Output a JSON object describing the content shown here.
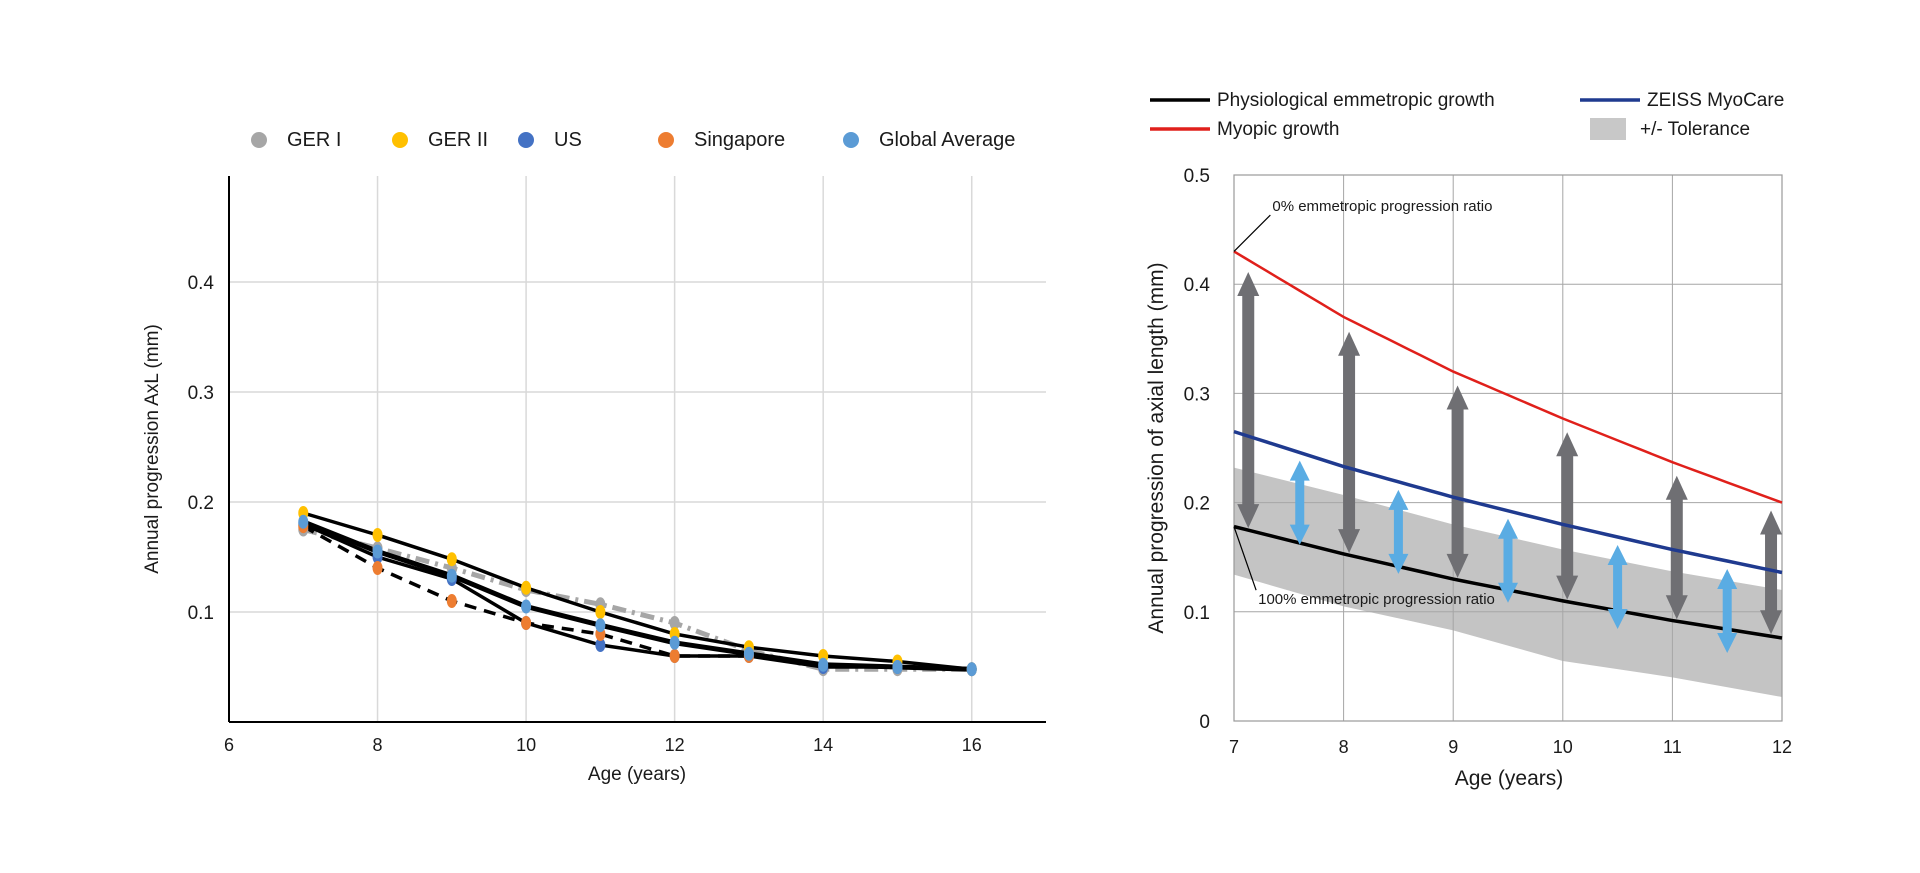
{
  "chart_data": [
    {
      "type": "line",
      "xlabel": "Age (years)",
      "ylabel": "Annual progression AxL (mm)",
      "xlim": [
        6,
        17
      ],
      "ylim": [
        0,
        0.5
      ],
      "x_ticks": [
        "6",
        "8",
        "10",
        "12",
        "14",
        "16"
      ],
      "y_ticks": [
        "0.1",
        "0.2",
        "0.3",
        "0.4"
      ],
      "grid": "vertical and horizontal",
      "legend_position": "top",
      "series": [
        {
          "name": "GER I",
          "color": "#a6a6a6",
          "style": "dash-dot",
          "x": [
            7,
            8,
            9,
            10,
            11,
            12,
            13,
            14,
            15,
            16
          ],
          "y": [
            0.175,
            0.158,
            0.14,
            0.12,
            0.107,
            0.09,
            0.065,
            0.048,
            0.048,
            0.048
          ]
        },
        {
          "name": "GER II",
          "color": "#ffc000",
          "style": "solid",
          "x": [
            7,
            8,
            9,
            10,
            11,
            12,
            13,
            14,
            15,
            16
          ],
          "y": [
            0.19,
            0.17,
            0.148,
            0.122,
            0.1,
            0.08,
            0.068,
            0.06,
            0.055,
            0.048
          ]
        },
        {
          "name": "US",
          "color": "#4472c4",
          "style": "solid",
          "x": [
            7,
            8,
            9,
            10,
            11,
            12,
            13,
            14,
            15,
            16
          ],
          "y": [
            0.18,
            0.15,
            0.13,
            0.09,
            0.07,
            0.06,
            0.06,
            0.05,
            0.05,
            0.048
          ]
        },
        {
          "name": "Singapore",
          "color": "#ed7d31",
          "style": "dashed",
          "x": [
            7,
            8,
            9,
            10,
            11,
            12,
            13
          ],
          "y": [
            0.178,
            0.14,
            0.11,
            0.09,
            0.08,
            0.06,
            0.06
          ]
        },
        {
          "name": "Global Average",
          "color": "#5b9bd5",
          "style": "solid",
          "x": [
            7,
            8,
            9,
            10,
            11,
            12,
            13,
            14,
            15,
            16
          ],
          "y": [
            0.182,
            0.155,
            0.133,
            0.105,
            0.088,
            0.072,
            0.062,
            0.052,
            0.05,
            0.048
          ]
        }
      ]
    },
    {
      "type": "line",
      "xlabel": "Age (years)",
      "ylabel": "Annual progression of axial length (mm)",
      "xlim": [
        7,
        12
      ],
      "ylim": [
        0,
        0.5
      ],
      "x_ticks": [
        "7",
        "8",
        "9",
        "10",
        "11",
        "12"
      ],
      "y_ticks": [
        "0",
        "0.1",
        "0.2",
        "0.3",
        "0.4",
        "0.5"
      ],
      "grid": "vertical and horizontal",
      "legend_position": "top",
      "series": [
        {
          "name": "Physiological emmetropic growth",
          "color": "#000000",
          "x": [
            7,
            8,
            9,
            10,
            11,
            12
          ],
          "y": [
            0.178,
            0.153,
            0.13,
            0.11,
            0.092,
            0.076
          ]
        },
        {
          "name": "Myopic growth",
          "color": "#e0201b",
          "x": [
            7,
            8,
            9,
            10,
            11,
            12
          ],
          "y": [
            0.43,
            0.37,
            0.32,
            0.277,
            0.237,
            0.2
          ]
        },
        {
          "name": "ZEISS MyoCare",
          "color": "#1f3a8f",
          "x": [
            7,
            8,
            9,
            10,
            11,
            12
          ],
          "y": [
            0.265,
            0.233,
            0.205,
            0.18,
            0.157,
            0.136
          ]
        },
        {
          "name": "+/- Tolerance",
          "color": "#c8c8c8",
          "type": "band",
          "x": [
            7,
            8,
            9,
            10,
            11,
            12
          ],
          "upper": [
            0.232,
            0.207,
            0.18,
            0.157,
            0.137,
            0.12
          ],
          "lower": [
            0.134,
            0.105,
            0.083,
            0.055,
            0.04,
            0.022
          ]
        }
      ],
      "gray_arrows_x": [
        7.13,
        8.05,
        9.04,
        10.04,
        11.04,
        11.9
      ],
      "blue_arrows_x": [
        7.6,
        8.5,
        9.5,
        10.5,
        11.5
      ],
      "annotations": [
        {
          "text": "0% emmetropic progression ratio",
          "x": 7.35,
          "y": 0.467
        },
        {
          "text": "100% emmetropic progression ratio",
          "x": 7.22,
          "y": 0.107
        }
      ]
    }
  ]
}
